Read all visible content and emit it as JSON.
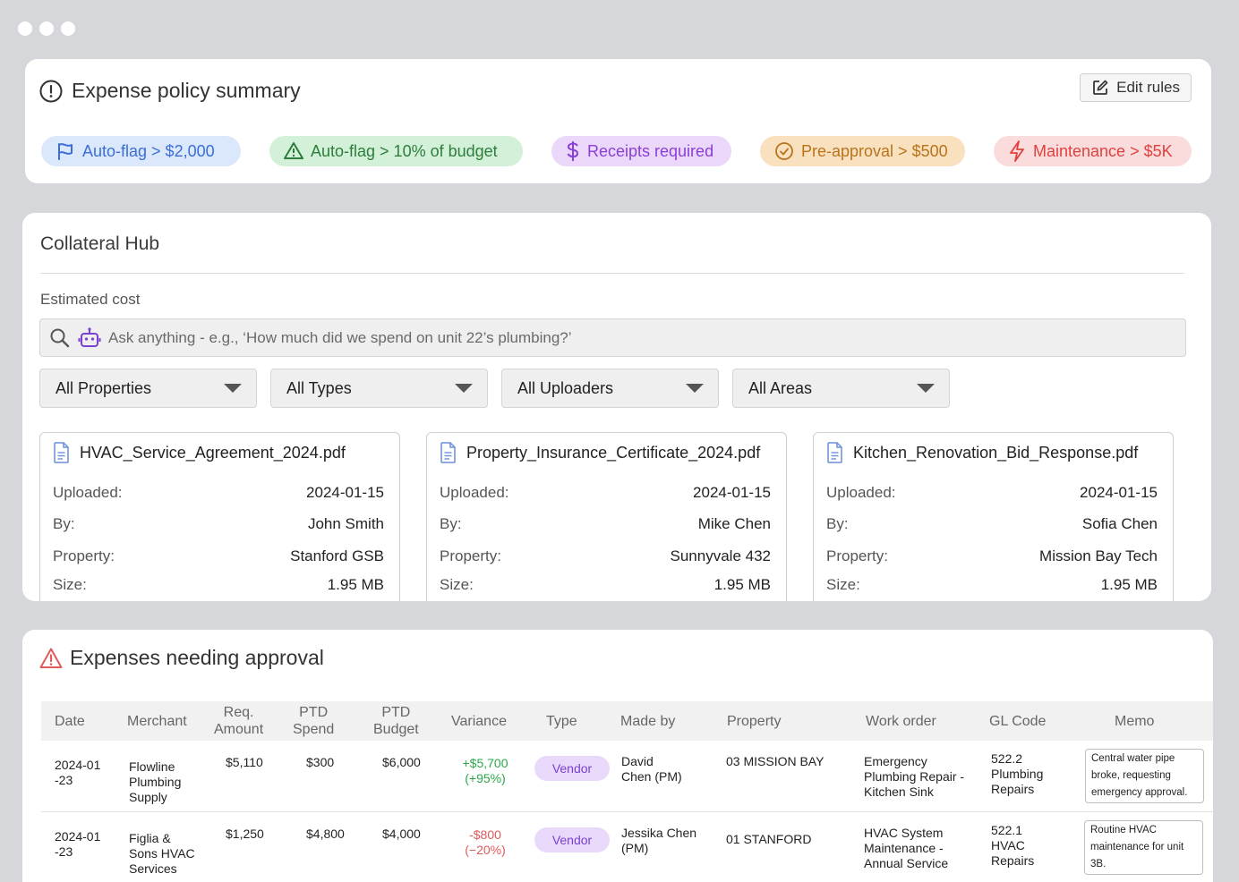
{
  "window": {
    "controls": [
      "dot",
      "dot",
      "dot"
    ]
  },
  "policy": {
    "title": "Expense policy summary",
    "edit_label": "Edit rules",
    "chips": [
      {
        "label": "Auto-flag > $2,000",
        "icon": "flag-icon",
        "bg": "#dbe7fb",
        "fg": "#3b6fd6"
      },
      {
        "label": "Auto-flag > 10% of budget",
        "icon": "warning-triangle-icon",
        "bg": "#d3f0d8",
        "fg": "#2e7d3c"
      },
      {
        "label": "Receipts required",
        "icon": "dollar-icon",
        "bg": "#ead7fa",
        "fg": "#8a3fd6"
      },
      {
        "label": "Pre-approval > $500",
        "icon": "check-circle-icon",
        "bg": "#f9e1bf",
        "fg": "#b8731c"
      },
      {
        "label": "Maintenance > $5K",
        "icon": "lightning-icon",
        "bg": "#fadcdc",
        "fg": "#e0413f"
      }
    ]
  },
  "hub": {
    "title": "Collateral Hub",
    "estimated_label": "Estimated cost",
    "search_placeholder": "Ask anything - e.g., ‘How much did we spend on unit 22’s plumbing?’",
    "filters": [
      "All Properties",
      "All Types",
      "All Uploaders",
      "All Areas"
    ],
    "field_labels": {
      "uploaded": "Uploaded:",
      "by": "By:",
      "property": "Property:",
      "size": "Size:"
    },
    "docs": [
      {
        "name": "HVAC_Service_Agreement_2024.pdf",
        "uploaded": "2024-01-15",
        "by": "John Smith",
        "property": "Stanford GSB",
        "size": "1.95 MB"
      },
      {
        "name": "Property_Insurance_Certificate_2024.pdf",
        "uploaded": "2024-01-15",
        "by": "Mike Chen",
        "property": "Sunnyvale 432",
        "size": "1.95 MB"
      },
      {
        "name": "Kitchen_Renovation_Bid_Response.pdf",
        "uploaded": "2024-01-15",
        "by": "Sofia Chen",
        "property": "Mission Bay Tech",
        "size": "1.95 MB"
      }
    ]
  },
  "expenses": {
    "title": "Expenses needing approval",
    "columns": [
      "Date",
      "Merchant",
      "Req.\nAmount",
      "PTD\nSpend",
      "PTD\nBudget",
      "Variance",
      "Type",
      "Made by",
      "Property",
      "Work order",
      "GL Code",
      "Memo"
    ],
    "rows": [
      {
        "date": "2024-01\n-23",
        "merchant": "Flowline\nPlumbing\nSupply",
        "req_amount": "$5,110",
        "ptd_spend": "$300",
        "ptd_budget": "$6,000",
        "variance": "+$5,700\n(+95%)",
        "variance_dir": "positive",
        "type": "Vendor",
        "made_by": "David\nChen (PM)",
        "property": "03 MISSION BAY",
        "work_order": "Emergency\nPlumbing Repair -\nKitchen Sink",
        "gl_code": "522.2\nPlumbing\nRepairs",
        "memo": "Central water pipe broke, requesting emergency approval."
      },
      {
        "date": "2024-01\n-23",
        "merchant": "Figlia &\nSons HVAC\nServices",
        "req_amount": "$1,250",
        "ptd_spend": "$4,800",
        "ptd_budget": "$4,000",
        "variance": "-$800\n(−20%)",
        "variance_dir": "negative",
        "type": "Vendor",
        "made_by": "Jessika Chen\n(PM)",
        "property": "01 STANFORD",
        "work_order": "HVAC System\nMaintenance -\nAnnual Service",
        "gl_code": "522.1\nHVAC\nRepairs",
        "memo": "Routine HVAC maintenance for unit 3B."
      }
    ]
  }
}
